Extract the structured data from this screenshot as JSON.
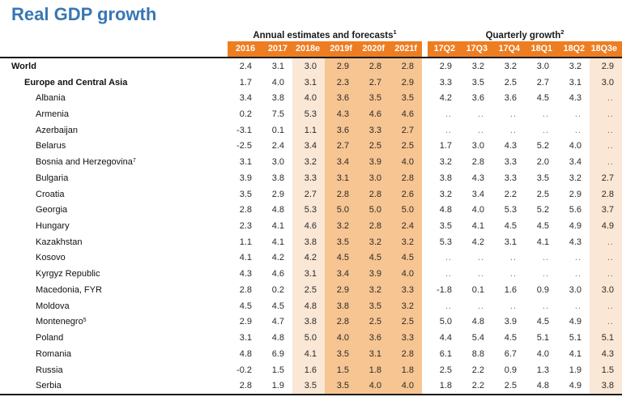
{
  "title": "Real GDP growth",
  "colors": {
    "header_bg": "#EE7D22",
    "shade_light": "#FAE7D5",
    "shade_dark": "#F6C592",
    "title": "#3877B4",
    "border": "#1a1a1a"
  },
  "groups": {
    "annual": {
      "label": "Annual estimates and forecasts",
      "footnote": "1",
      "columns": [
        "2016",
        "2017",
        "2018e",
        "2019f",
        "2020f",
        "2021f"
      ],
      "column_shading": [
        "none",
        "none",
        "light",
        "dark",
        "dark",
        "dark"
      ]
    },
    "quarterly": {
      "label": "Quarterly growth",
      "footnote": "2",
      "columns": [
        "17Q2",
        "17Q3",
        "17Q4",
        "18Q1",
        "18Q2",
        "18Q3e"
      ],
      "column_shading": [
        "none",
        "none",
        "none",
        "none",
        "none",
        "light"
      ]
    }
  },
  "table": {
    "rows": [
      {
        "name": "World",
        "level": 0,
        "bold": true,
        "annual": [
          "2.4",
          "3.1",
          "3.0",
          "2.9",
          "2.8",
          "2.8"
        ],
        "quarterly": [
          "2.9",
          "3.2",
          "3.2",
          "3.0",
          "3.2",
          "2.9"
        ]
      },
      {
        "name": "Europe and Central Asia",
        "level": 1,
        "bold": true,
        "annual": [
          "1.7",
          "4.0",
          "3.1",
          "2.3",
          "2.7",
          "2.9"
        ],
        "quarterly": [
          "3.3",
          "3.5",
          "2.5",
          "2.7",
          "3.1",
          "3.0"
        ]
      },
      {
        "name": "Albania",
        "level": 2,
        "bold": false,
        "annual": [
          "3.4",
          "3.8",
          "4.0",
          "3.6",
          "3.5",
          "3.5"
        ],
        "quarterly": [
          "4.2",
          "3.6",
          "3.6",
          "4.5",
          "4.3",
          ".."
        ]
      },
      {
        "name": "Armenia",
        "level": 2,
        "bold": false,
        "annual": [
          "0.2",
          "7.5",
          "5.3",
          "4.3",
          "4.6",
          "4.6"
        ],
        "quarterly": [
          "..",
          "..",
          "..",
          "..",
          "..",
          ".."
        ]
      },
      {
        "name": "Azerbaijan",
        "level": 2,
        "bold": false,
        "annual": [
          "-3.1",
          "0.1",
          "1.1",
          "3.6",
          "3.3",
          "2.7"
        ],
        "quarterly": [
          "..",
          "..",
          "..",
          "..",
          "..",
          ".."
        ]
      },
      {
        "name": "Belarus",
        "level": 2,
        "bold": false,
        "annual": [
          "-2.5",
          "2.4",
          "3.4",
          "2.7",
          "2.5",
          "2.5"
        ],
        "quarterly": [
          "1.7",
          "3.0",
          "4.3",
          "5.2",
          "4.0",
          ".."
        ]
      },
      {
        "name": "Bosnia and Herzegovina",
        "footnote": "7",
        "level": 2,
        "bold": false,
        "annual": [
          "3.1",
          "3.0",
          "3.2",
          "3.4",
          "3.9",
          "4.0"
        ],
        "quarterly": [
          "3.2",
          "2.8",
          "3.3",
          "2.0",
          "3.4",
          ".."
        ]
      },
      {
        "name": "Bulgaria",
        "level": 2,
        "bold": false,
        "annual": [
          "3.9",
          "3.8",
          "3.3",
          "3.1",
          "3.0",
          "2.8"
        ],
        "quarterly": [
          "3.8",
          "4.3",
          "3.3",
          "3.5",
          "3.2",
          "2.7"
        ]
      },
      {
        "name": "Croatia",
        "level": 2,
        "bold": false,
        "annual": [
          "3.5",
          "2.9",
          "2.7",
          "2.8",
          "2.8",
          "2.6"
        ],
        "quarterly": [
          "3.2",
          "3.4",
          "2.2",
          "2.5",
          "2.9",
          "2.8"
        ]
      },
      {
        "name": "Georgia",
        "level": 2,
        "bold": false,
        "annual": [
          "2.8",
          "4.8",
          "5.3",
          "5.0",
          "5.0",
          "5.0"
        ],
        "quarterly": [
          "4.8",
          "4.0",
          "5.3",
          "5.2",
          "5.6",
          "3.7"
        ]
      },
      {
        "name": "Hungary",
        "level": 2,
        "bold": false,
        "annual": [
          "2.3",
          "4.1",
          "4.6",
          "3.2",
          "2.8",
          "2.4"
        ],
        "quarterly": [
          "3.5",
          "4.1",
          "4.5",
          "4.5",
          "4.9",
          "4.9"
        ]
      },
      {
        "name": "Kazakhstan",
        "level": 2,
        "bold": false,
        "annual": [
          "1.1",
          "4.1",
          "3.8",
          "3.5",
          "3.2",
          "3.2"
        ],
        "quarterly": [
          "5.3",
          "4.2",
          "3.1",
          "4.1",
          "4.3",
          ".."
        ]
      },
      {
        "name": "Kosovo",
        "level": 2,
        "bold": false,
        "annual": [
          "4.1",
          "4.2",
          "4.2",
          "4.5",
          "4.5",
          "4.5"
        ],
        "quarterly": [
          "..",
          "..",
          "..",
          "..",
          "..",
          ".."
        ]
      },
      {
        "name": "Kyrgyz Republic",
        "level": 2,
        "bold": false,
        "annual": [
          "4.3",
          "4.6",
          "3.1",
          "3.4",
          "3.9",
          "4.0"
        ],
        "quarterly": [
          "..",
          "..",
          "..",
          "..",
          "..",
          ".."
        ]
      },
      {
        "name": "Macedonia, FYR",
        "level": 2,
        "bold": false,
        "annual": [
          "2.8",
          "0.2",
          "2.5",
          "2.9",
          "3.2",
          "3.3"
        ],
        "quarterly": [
          "-1.8",
          "0.1",
          "1.6",
          "0.9",
          "3.0",
          "3.0"
        ]
      },
      {
        "name": "Moldova",
        "level": 2,
        "bold": false,
        "annual": [
          "4.5",
          "4.5",
          "4.8",
          "3.8",
          "3.5",
          "3.2"
        ],
        "quarterly": [
          "..",
          "..",
          "..",
          "..",
          "..",
          ".."
        ]
      },
      {
        "name": "Montenegro",
        "footnote": "5",
        "level": 2,
        "bold": false,
        "annual": [
          "2.9",
          "4.7",
          "3.8",
          "2.8",
          "2.5",
          "2.5"
        ],
        "quarterly": [
          "5.0",
          "4.8",
          "3.9",
          "4.5",
          "4.9",
          ".."
        ]
      },
      {
        "name": "Poland",
        "level": 2,
        "bold": false,
        "annual": [
          "3.1",
          "4.8",
          "5.0",
          "4.0",
          "3.6",
          "3.3"
        ],
        "quarterly": [
          "4.4",
          "5.4",
          "4.5",
          "5.1",
          "5.1",
          "5.1"
        ]
      },
      {
        "name": "Romania",
        "level": 2,
        "bold": false,
        "annual": [
          "4.8",
          "6.9",
          "4.1",
          "3.5",
          "3.1",
          "2.8"
        ],
        "quarterly": [
          "6.1",
          "8.8",
          "6.7",
          "4.0",
          "4.1",
          "4.3"
        ]
      },
      {
        "name": "Russia",
        "level": 2,
        "bold": false,
        "annual": [
          "-0.2",
          "1.5",
          "1.6",
          "1.5",
          "1.8",
          "1.8"
        ],
        "quarterly": [
          "2.5",
          "2.2",
          "0.9",
          "1.3",
          "1.9",
          "1.5"
        ]
      },
      {
        "name": "Serbia",
        "level": 2,
        "bold": false,
        "annual": [
          "2.8",
          "1.9",
          "3.5",
          "3.5",
          "4.0",
          "4.0"
        ],
        "quarterly": [
          "1.8",
          "2.2",
          "2.5",
          "4.8",
          "4.9",
          "3.8"
        ]
      }
    ]
  }
}
